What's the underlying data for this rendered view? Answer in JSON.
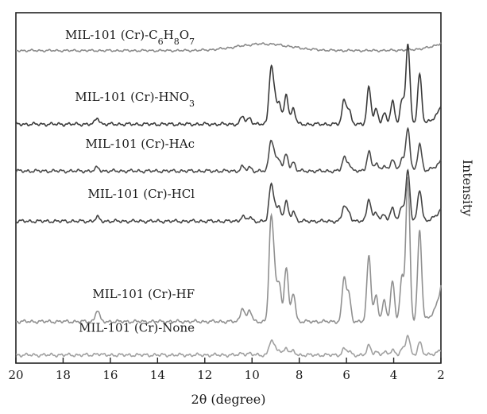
{
  "chart_data": {
    "type": "line",
    "title": "",
    "mirrored": true,
    "xlabel": "2θ (degree)",
    "ylabel": "Intensity",
    "xlim": [
      2,
      20
    ],
    "x_ticks": [
      2,
      4,
      6,
      8,
      10,
      12,
      14,
      16,
      18,
      20
    ],
    "grid": false,
    "legend": "none",
    "series": [
      {
        "name": "MIL-101 (Cr)-C6H8O7",
        "label_main": "MIL-101 (Cr)-C",
        "label_parts": [
          "6",
          "H",
          "8",
          "O",
          "7"
        ],
        "color": "#8a8a8a",
        "baseline": 0.92,
        "scale": 0.05
      },
      {
        "name": "MIL-101 (Cr)-HNO3",
        "label_main": "MIL-101 (Cr)-HNO",
        "label_parts": [
          "3"
        ],
        "color": "#3a3a3a",
        "baseline": 0.7,
        "scale": 0.24
      },
      {
        "name": "MIL-101 (Cr)-HAc",
        "label_main": "MIL-101 (Cr)-HAc",
        "label_parts": [],
        "color": "#4a4a4a",
        "baseline": 0.56,
        "scale": 0.13
      },
      {
        "name": "MIL-101 (Cr)-HCl",
        "label_main": "MIL-101 (Cr)-HCl",
        "label_parts": [],
        "color": "#444444",
        "baseline": 0.41,
        "scale": 0.15
      },
      {
        "name": "MIL-101 (Cr)-HF",
        "label_main": "MIL-101 (Cr)-HF",
        "label_parts": [],
        "color": "#909090",
        "baseline": 0.11,
        "scale": 0.43
      },
      {
        "name": "MIL-101 (Cr)-None",
        "label_main": "MIL-101 (Cr)-None",
        "label_parts": [],
        "color": "#a0a0a0",
        "baseline": 0.01,
        "scale": 0.06
      }
    ],
    "peak_positions": [
      2.9,
      3.4,
      3.65,
      4.05,
      4.4,
      4.75,
      5.05,
      5.9,
      6.1,
      8.25,
      8.55,
      8.85,
      9.05,
      9.2,
      10.1,
      10.4,
      16.55
    ],
    "peak_heights": [
      0.62,
      1.0,
      0.3,
      0.28,
      0.14,
      0.18,
      0.46,
      0.18,
      0.3,
      0.2,
      0.38,
      0.26,
      0.3,
      0.66,
      0.08,
      0.1,
      0.08
    ]
  }
}
